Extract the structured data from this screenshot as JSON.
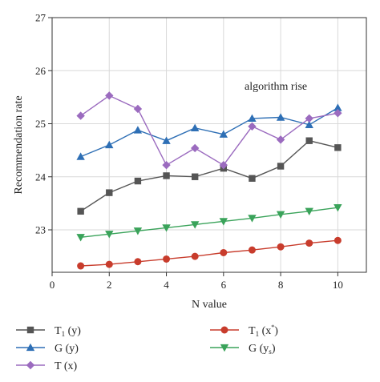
{
  "chart_data": {
    "type": "line",
    "title": "",
    "xlabel": "N value",
    "ylabel": "Recommendation rate",
    "annotation": "algorithm rise",
    "xlim": [
      0,
      11
    ],
    "ylim": [
      22.2,
      27
    ],
    "x_ticks": [
      "0",
      "2",
      "4",
      "6",
      "8",
      "10"
    ],
    "y_ticks": [
      "23",
      "24",
      "25",
      "26",
      "27"
    ],
    "grid": true,
    "legend_position": "below plot",
    "x": [
      1,
      2,
      3,
      4,
      5,
      6,
      7,
      8,
      9,
      10
    ],
    "series": [
      {
        "key": "t1y",
        "name_main": "T",
        "name_sub": "1",
        "name_rest": "(y)",
        "color": "#555555",
        "marker": "square",
        "values": [
          23.35,
          23.7,
          23.92,
          24.02,
          24.0,
          24.16,
          23.97,
          24.2,
          24.68,
          24.55
        ]
      },
      {
        "key": "gy",
        "name_main": "G",
        "name_rest": "(y)",
        "color": "#2e6fb5",
        "marker": "triangle-up",
        "values": [
          24.38,
          24.6,
          24.88,
          24.68,
          24.92,
          24.8,
          25.1,
          25.12,
          24.98,
          25.3
        ]
      },
      {
        "key": "tx",
        "name_main": "T",
        "name_rest": "(x)",
        "color": "#9b6bbf",
        "marker": "diamond",
        "values": [
          25.15,
          25.53,
          25.28,
          24.22,
          24.54,
          24.22,
          24.95,
          24.7,
          25.1,
          25.2
        ]
      },
      {
        "key": "t1xs",
        "name_main": "T",
        "name_sub": "1",
        "name_rest": "(x",
        "name_sup": "*",
        "name_end": ")",
        "color": "#c83c2c",
        "marker": "circle",
        "values": [
          22.32,
          22.35,
          22.4,
          22.45,
          22.5,
          22.57,
          22.62,
          22.68,
          22.75,
          22.8
        ]
      },
      {
        "key": "gys",
        "name_main": "G",
        "name_rest": "(y",
        "name_sub2": "s",
        "name_end": ")",
        "color": "#3aa35a",
        "marker": "triangle-down",
        "values": [
          22.86,
          22.92,
          22.98,
          23.04,
          23.1,
          23.16,
          23.22,
          23.29,
          23.35,
          23.42
        ]
      }
    ]
  }
}
